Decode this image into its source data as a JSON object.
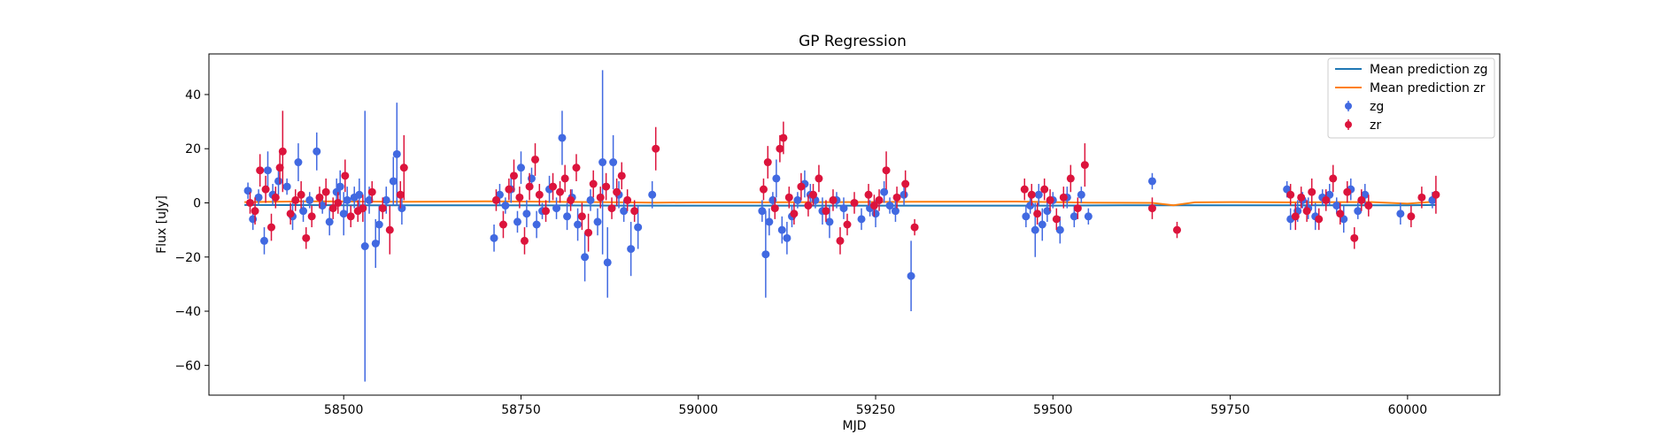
{
  "chart_data": {
    "type": "scatter",
    "title": "GP Regression",
    "xlabel": "MJD",
    "ylabel": "Flux [uJy]",
    "xlim": [
      58310,
      60130
    ],
    "ylim": [
      -71,
      55
    ],
    "xticks": [
      58500,
      58750,
      59000,
      59250,
      59500,
      59750,
      60000
    ],
    "yticks": [
      -60,
      -40,
      -20,
      0,
      20,
      40
    ],
    "grid": false,
    "legend_position": "top-right",
    "legend": [
      "Mean prediction zg",
      "Mean prediction zr",
      "zg",
      "zr"
    ],
    "lines": [
      {
        "name": "Mean prediction zg",
        "color": "#1f77b4",
        "x": [
          58360,
          58500,
          58700,
          58900,
          59100,
          59300,
          59500,
          59600,
          59650,
          59700,
          59800,
          60000,
          60040
        ],
        "y": [
          -0.8,
          -0.9,
          -0.9,
          -1.0,
          -1.0,
          -1.0,
          -1.0,
          -0.9,
          -0.9,
          -0.9,
          -0.9,
          -0.9,
          -0.8
        ]
      },
      {
        "name": "Mean prediction zr",
        "color": "#ff7f0e",
        "x": [
          58360,
          58450,
          58590,
          58700,
          58800,
          58900,
          58940,
          59000,
          59090,
          59200,
          59300,
          59450,
          59550,
          59640,
          59670,
          59700,
          59750,
          59830,
          59950,
          60000,
          60040
        ],
        "y": [
          0.3,
          0.6,
          0.4,
          0.6,
          0.4,
          0.2,
          0.1,
          0.2,
          0.2,
          0.3,
          0.4,
          0.5,
          0.1,
          0.0,
          -0.9,
          0.2,
          0.3,
          0.2,
          0.3,
          -0.3,
          0.5
        ]
      }
    ],
    "series": [
      {
        "name": "zg",
        "color": "#4169e1",
        "x": [
          58365,
          58372,
          58380,
          58388,
          58393,
          58400,
          58408,
          58420,
          58428,
          58436,
          58443,
          58452,
          58462,
          58470,
          58480,
          58490,
          58495,
          58500,
          58505,
          58515,
          58522,
          58530,
          58536,
          58545,
          58550,
          58560,
          58570,
          58575,
          58582,
          58712,
          58720,
          58728,
          58736,
          58745,
          58750,
          58758,
          58765,
          58772,
          58780,
          58790,
          58800,
          58808,
          58815,
          58822,
          58830,
          58840,
          58848,
          58858,
          58865,
          58872,
          58880,
          58888,
          58895,
          58905,
          58915,
          58935,
          59090,
          59095,
          59100,
          59105,
          59110,
          59118,
          59125,
          59132,
          59140,
          59150,
          59158,
          59165,
          59175,
          59185,
          59195,
          59205,
          59230,
          59242,
          59250,
          59262,
          59270,
          59278,
          59290,
          59300,
          59462,
          59468,
          59475,
          59480,
          59485,
          59492,
          59500,
          59510,
          59520,
          59530,
          59540,
          59550,
          59640,
          59830,
          59835,
          59845,
          59852,
          59860,
          59870,
          59880,
          59890,
          59900,
          59910,
          59920,
          59930,
          59940,
          59990,
          60035
        ],
        "y": [
          4.5,
          -6,
          2,
          -14,
          12,
          3,
          8,
          6,
          -5,
          15,
          -3,
          1,
          19,
          -1,
          -7,
          4,
          6,
          -4,
          1,
          2,
          3,
          -16,
          1,
          -15,
          -8,
          1,
          8,
          18,
          -2,
          -13,
          3,
          -1,
          5,
          -7,
          13,
          -4,
          9,
          -8,
          -3,
          5,
          -2,
          24,
          -5,
          2,
          -8,
          -20,
          1,
          -7,
          15,
          -22,
          15,
          3,
          -3,
          -17,
          -9,
          3,
          -3,
          -19,
          -7,
          1,
          9,
          -10,
          -13,
          -5,
          1,
          7,
          3,
          1,
          -3,
          -7,
          1,
          -2,
          -6,
          -2,
          -4,
          4,
          -1,
          -3,
          3,
          -27,
          -5,
          -1,
          -10,
          3,
          -8,
          -3,
          1,
          -10,
          2,
          -5,
          3,
          -5,
          8,
          5,
          -6,
          -3,
          1,
          -2,
          -5,
          2,
          3,
          -1,
          -6,
          5,
          -3,
          3,
          -4,
          1
        ],
        "yerr": [
          3,
          4,
          3,
          5,
          7,
          4,
          5,
          3,
          5,
          7,
          4,
          3,
          7,
          3,
          5,
          5,
          6,
          8,
          5,
          4,
          6,
          50,
          5,
          9,
          7,
          5,
          9,
          19,
          6,
          5,
          4,
          3,
          5,
          4,
          6,
          5,
          4,
          5,
          3,
          5,
          4,
          10,
          5,
          3,
          6,
          9,
          4,
          5,
          34,
          13,
          10,
          5,
          4,
          10,
          8,
          5,
          4,
          16,
          5,
          3,
          7,
          5,
          6,
          4,
          3,
          5,
          4,
          3,
          5,
          6,
          3,
          4,
          4,
          3,
          5,
          4,
          3,
          4,
          4,
          13,
          4,
          3,
          10,
          4,
          6,
          4,
          3,
          5,
          4,
          4,
          3,
          3,
          3,
          3,
          4,
          4,
          3,
          4,
          5,
          3,
          4,
          3,
          5,
          4,
          3,
          4,
          4,
          3
        ]
      },
      {
        "name": "zr",
        "color": "#dc143c",
        "x": [
          58368,
          58375,
          58382,
          58390,
          58398,
          58404,
          58410,
          58414,
          58425,
          58432,
          58440,
          58447,
          58455,
          58466,
          58475,
          58485,
          58492,
          58502,
          58510,
          58520,
          58527,
          58540,
          58555,
          58565,
          58580,
          58585,
          58715,
          58725,
          58733,
          58740,
          58748,
          58755,
          58762,
          58770,
          58776,
          58785,
          58795,
          58805,
          58812,
          58820,
          58828,
          58836,
          58845,
          58852,
          58862,
          58870,
          58878,
          58885,
          58892,
          58900,
          58910,
          58940,
          59092,
          59098,
          59108,
          59115,
          59120,
          59128,
          59135,
          59145,
          59155,
          59162,
          59170,
          59180,
          59190,
          59200,
          59210,
          59220,
          59240,
          59248,
          59255,
          59265,
          59280,
          59292,
          59305,
          59460,
          59470,
          59478,
          59488,
          59496,
          59505,
          59515,
          59525,
          59535,
          59545,
          59640,
          59675,
          59835,
          59842,
          59850,
          59858,
          59865,
          59875,
          59885,
          59895,
          59905,
          59915,
          59925,
          59935,
          59945,
          60005,
          60020,
          60040
        ],
        "y": [
          0,
          -3,
          12,
          5,
          -9,
          2,
          13,
          19,
          -4,
          1,
          3,
          -13,
          -5,
          2,
          4,
          -2,
          0,
          10,
          -5,
          -3,
          -2,
          4,
          -2,
          -10,
          3,
          13,
          1,
          -8,
          5,
          10,
          2,
          -14,
          6,
          16,
          3,
          -3,
          6,
          4,
          9,
          1,
          13,
          -5,
          -11,
          7,
          2,
          6,
          -2,
          4,
          10,
          1,
          -3,
          20,
          5,
          15,
          -2,
          20,
          24,
          2,
          -4,
          6,
          -1,
          3,
          9,
          -3,
          1,
          -14,
          -8,
          0,
          3,
          -1,
          1,
          12,
          2,
          7,
          -9,
          5,
          3,
          -4,
          5,
          1,
          -6,
          2,
          9,
          -2,
          14,
          -2,
          -10,
          3,
          -5,
          2,
          -3,
          4,
          -6,
          1,
          9,
          -4,
          4,
          -13,
          1,
          -1,
          -5,
          2,
          3
        ],
        "yerr": [
          4,
          5,
          6,
          5,
          5,
          4,
          6,
          15,
          4,
          4,
          5,
          4,
          4,
          4,
          5,
          4,
          4,
          6,
          4,
          4,
          5,
          4,
          4,
          9,
          5,
          12,
          4,
          5,
          4,
          6,
          4,
          5,
          5,
          6,
          4,
          4,
          5,
          4,
          5,
          4,
          5,
          5,
          7,
          5,
          4,
          5,
          4,
          5,
          5,
          4,
          4,
          8,
          4,
          6,
          4,
          5,
          6,
          4,
          4,
          5,
          4,
          4,
          5,
          4,
          4,
          5,
          4,
          4,
          4,
          4,
          4,
          7,
          4,
          5,
          3,
          4,
          4,
          4,
          4,
          4,
          4,
          4,
          5,
          4,
          8,
          4,
          3,
          4,
          5,
          4,
          4,
          5,
          4,
          4,
          5,
          4,
          4,
          4,
          4,
          4,
          4,
          4,
          7
        ]
      }
    ]
  }
}
